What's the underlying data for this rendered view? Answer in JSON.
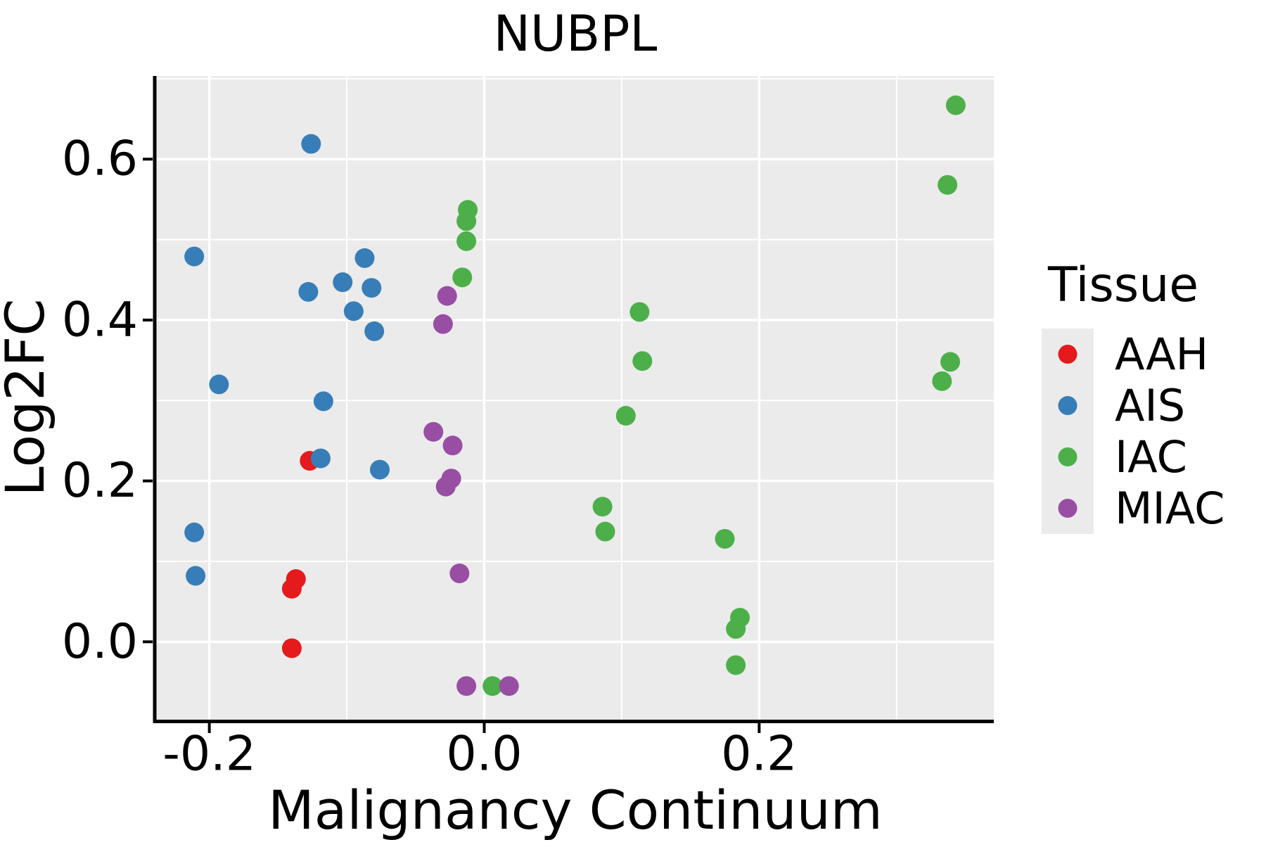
{
  "figure": {
    "background": "#ffffff",
    "panel_background": "#EBEBEB",
    "grid_color": "#FFFFFF",
    "spine_color": "#000000",
    "text_color": "#000000"
  },
  "chart_data": {
    "type": "scatter",
    "title": "NUBPL",
    "xlabel": "Malignancy Continuum",
    "ylabel": "Log2FC",
    "legend_title": "Tissue",
    "legend_position": "right",
    "grid": "major and minor gridlines, white on gray panel",
    "xlim": [
      -0.2387,
      0.3707
    ],
    "ylim": [
      -0.0968,
      0.7034
    ],
    "x_tick_values": [
      -0.2,
      0.0,
      0.2
    ],
    "x_tick_labels": [
      "-0.2",
      "0.0",
      "0.2"
    ],
    "y_tick_values": [
      0.0,
      0.2,
      0.4,
      0.6
    ],
    "y_tick_labels": [
      "0.0",
      "0.2",
      "0.4",
      "0.6"
    ],
    "x_minor_tick_values": [
      -0.1,
      0.1,
      0.3
    ],
    "y_minor_tick_values": [
      0.1,
      0.3,
      0.5,
      0.7
    ],
    "point_radius_px": 14,
    "series": [
      {
        "name": "AAH",
        "color": "#E41A1C",
        "points": [
          {
            "x": -0.127,
            "y": 0.225
          },
          {
            "x": -0.137,
            "y": 0.078
          },
          {
            "x": -0.14,
            "y": 0.066
          },
          {
            "x": -0.14,
            "y": -0.008
          }
        ]
      },
      {
        "name": "AIS",
        "color": "#377EB8",
        "points": [
          {
            "x": -0.126,
            "y": 0.619
          },
          {
            "x": -0.211,
            "y": 0.479
          },
          {
            "x": -0.087,
            "y": 0.477
          },
          {
            "x": -0.103,
            "y": 0.447
          },
          {
            "x": -0.082,
            "y": 0.44
          },
          {
            "x": -0.128,
            "y": 0.435
          },
          {
            "x": -0.095,
            "y": 0.411
          },
          {
            "x": -0.08,
            "y": 0.386
          },
          {
            "x": -0.193,
            "y": 0.32
          },
          {
            "x": -0.117,
            "y": 0.299
          },
          {
            "x": -0.119,
            "y": 0.228
          },
          {
            "x": -0.076,
            "y": 0.214
          },
          {
            "x": -0.211,
            "y": 0.136
          },
          {
            "x": -0.21,
            "y": 0.082
          }
        ]
      },
      {
        "name": "IAC",
        "color": "#4DAF4A",
        "points": [
          {
            "x": 0.343,
            "y": 0.667
          },
          {
            "x": 0.337,
            "y": 0.568
          },
          {
            "x": -0.012,
            "y": 0.537
          },
          {
            "x": -0.013,
            "y": 0.523
          },
          {
            "x": -0.013,
            "y": 0.498
          },
          {
            "x": -0.016,
            "y": 0.453
          },
          {
            "x": 0.113,
            "y": 0.41
          },
          {
            "x": 0.115,
            "y": 0.349
          },
          {
            "x": 0.339,
            "y": 0.348
          },
          {
            "x": 0.333,
            "y": 0.324
          },
          {
            "x": 0.103,
            "y": 0.281
          },
          {
            "x": 0.086,
            "y": 0.168
          },
          {
            "x": 0.088,
            "y": 0.137
          },
          {
            "x": 0.175,
            "y": 0.128
          },
          {
            "x": 0.186,
            "y": 0.03
          },
          {
            "x": 0.183,
            "y": 0.016
          },
          {
            "x": 0.183,
            "y": -0.029
          },
          {
            "x": 0.006,
            "y": -0.055
          }
        ]
      },
      {
        "name": "MIAC",
        "color": "#984EA3",
        "points": [
          {
            "x": -0.027,
            "y": 0.43
          },
          {
            "x": -0.03,
            "y": 0.395
          },
          {
            "x": -0.037,
            "y": 0.261
          },
          {
            "x": -0.023,
            "y": 0.244
          },
          {
            "x": -0.024,
            "y": 0.203
          },
          {
            "x": -0.028,
            "y": 0.193
          },
          {
            "x": -0.018,
            "y": 0.085
          },
          {
            "x": -0.013,
            "y": -0.055
          },
          {
            "x": 0.018,
            "y": -0.055
          }
        ]
      }
    ]
  }
}
